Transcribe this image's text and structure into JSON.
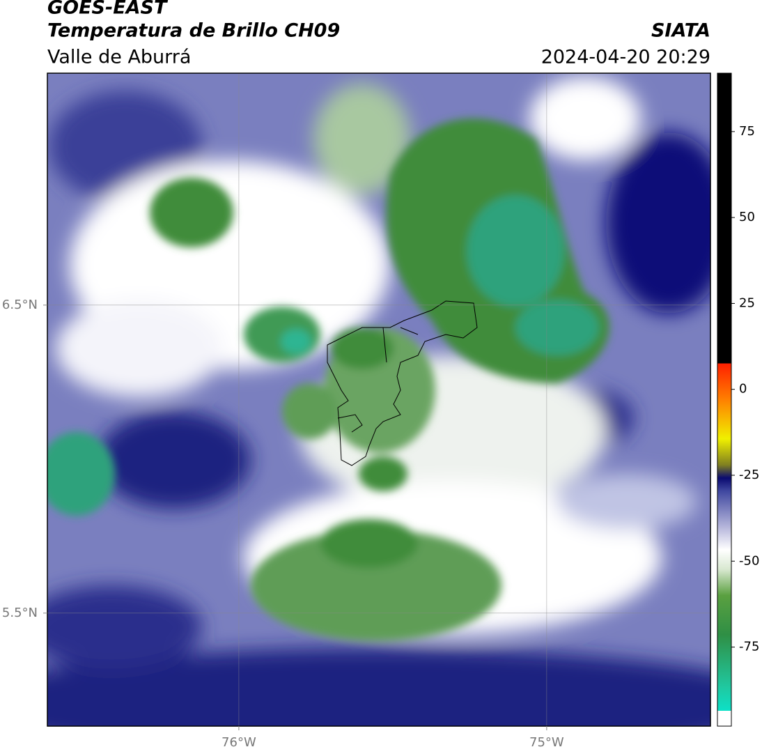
{
  "header": {
    "title": "GOES-EAST",
    "subtitle": "Temperatura de Brillo CH09",
    "region": "Valle de Aburrá",
    "source": "SIATA",
    "datetime": "2024-04-20 20:29"
  },
  "map": {
    "lonlim": [
      -76.622,
      -74.468
    ],
    "latlim": [
      5.133,
      7.253
    ],
    "xticks": [
      {
        "value": -76,
        "label": "76°W"
      },
      {
        "value": -75,
        "label": "75°W"
      }
    ],
    "yticks": [
      {
        "value": 6.5,
        "label": "6.5°N"
      },
      {
        "value": 5.5,
        "label": "5.5°N"
      }
    ],
    "grid": true
  },
  "colorbar": {
    "lim": [
      -98,
      92
    ],
    "ticks": [
      75,
      50,
      25,
      0,
      -25,
      -50,
      -75
    ]
  }
}
